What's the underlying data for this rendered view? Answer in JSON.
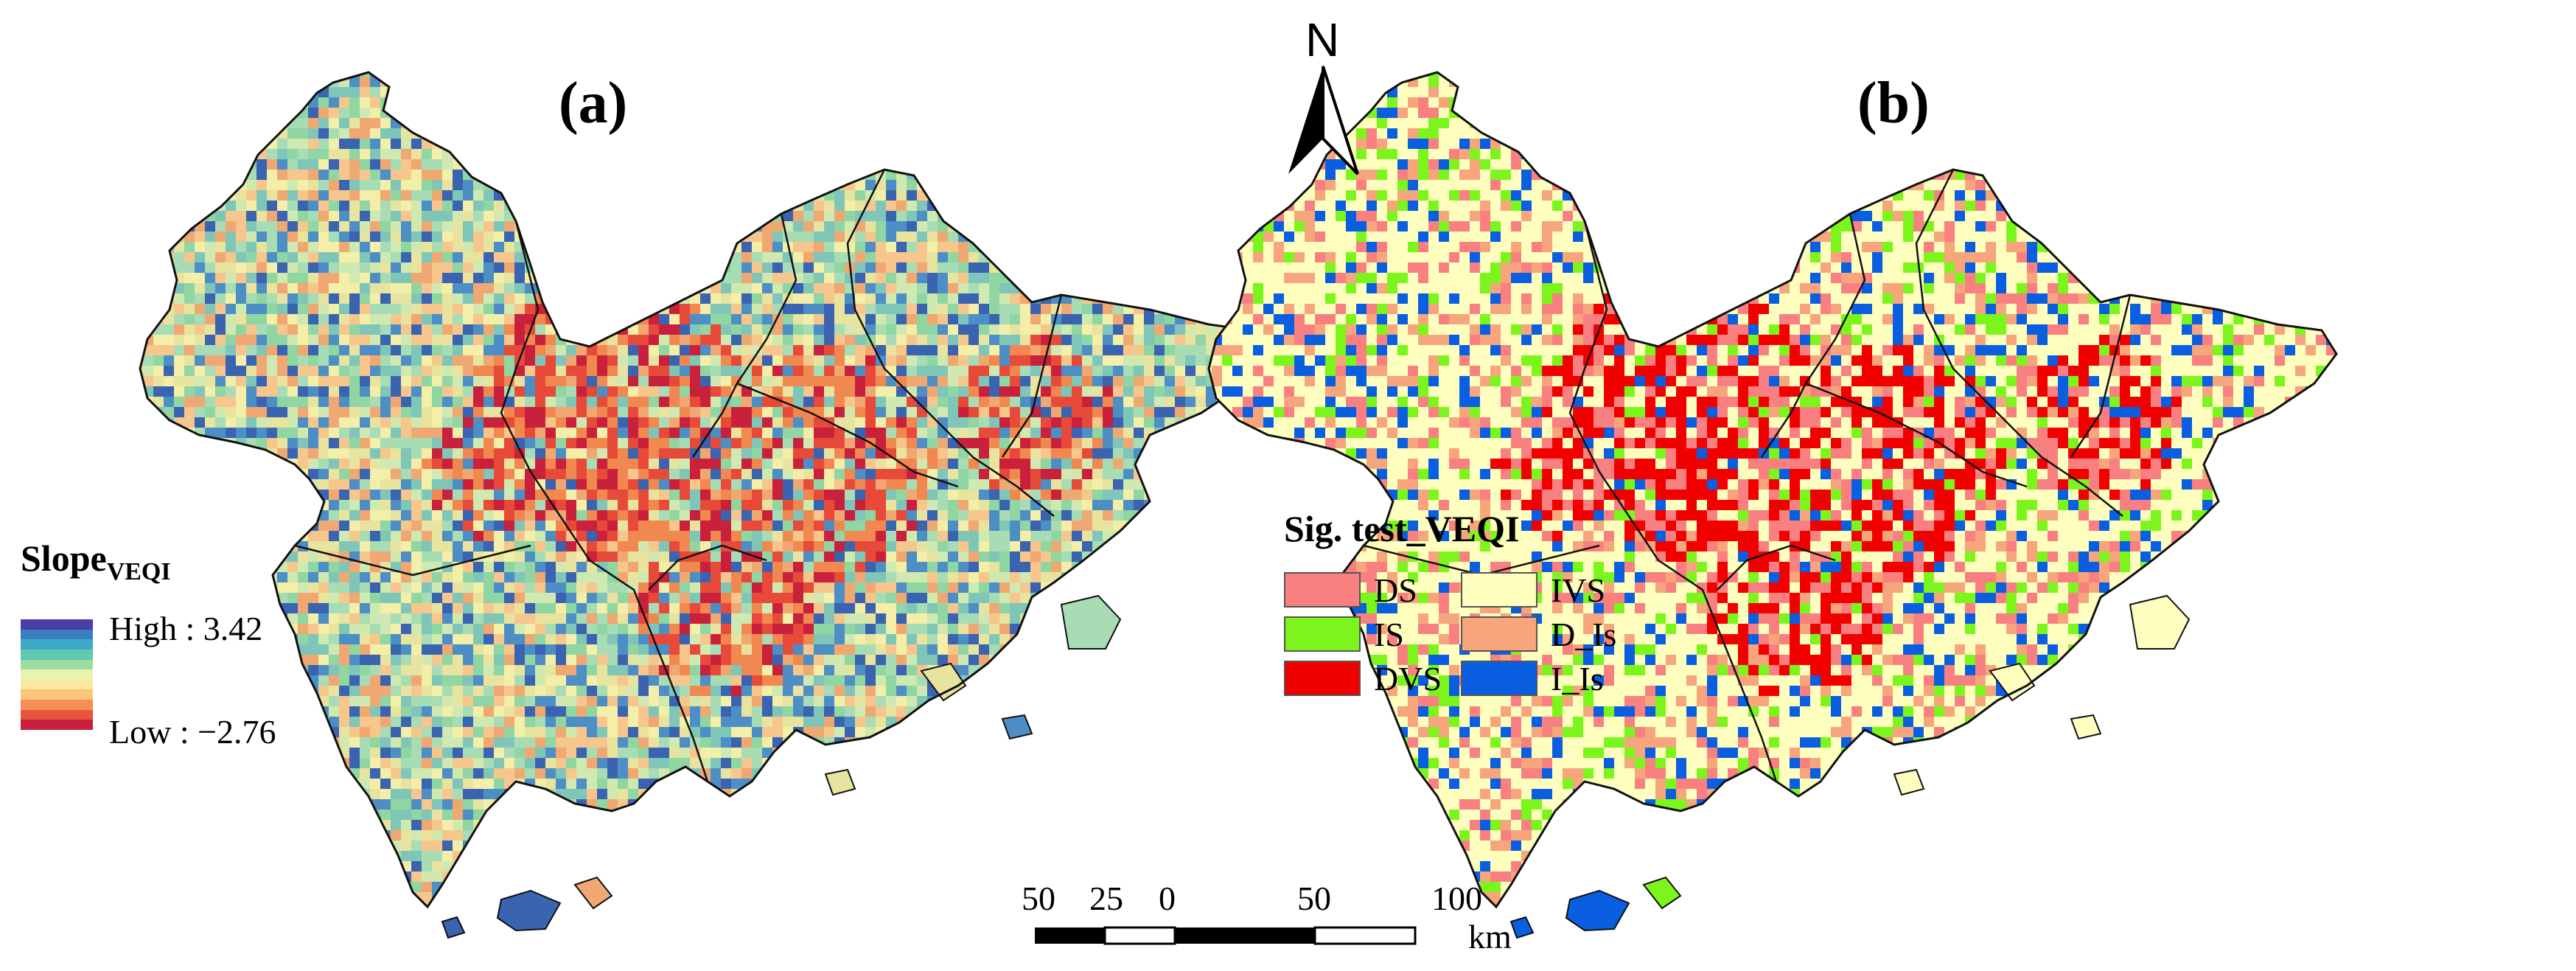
{
  "panels": {
    "a": {
      "label": "(a)"
    },
    "b": {
      "label": "(b)"
    }
  },
  "north_arrow": {
    "letter": "N"
  },
  "legend_slope": {
    "title_main": "Slope",
    "title_sub": "VEQI",
    "high_label": "High : 3.42",
    "low_label": "Low : −2.76",
    "ramp_colors": [
      "#4a3fa5",
      "#3b7fc0",
      "#3fa9c9",
      "#5ec9b0",
      "#9ddca0",
      "#e8f3b0",
      "#fde8a0",
      "#fbc47a",
      "#f58f55",
      "#e8553e",
      "#c91f3c"
    ]
  },
  "legend_sig": {
    "title": "Sig. test_VEQI",
    "items": [
      {
        "label": "DS",
        "color": "#f98080"
      },
      {
        "label": "IS",
        "color": "#7cf51c"
      },
      {
        "label": "DVS",
        "color": "#f20000"
      },
      {
        "label": "IVS",
        "color": "#fefebe"
      },
      {
        "label": "D_Is",
        "color": "#f7a57c"
      },
      {
        "label": "I_Is",
        "color": "#0a5fe0"
      }
    ]
  },
  "scale_bar": {
    "ticks": [
      "50",
      "25",
      "0",
      "50",
      "100"
    ],
    "unit": "km"
  },
  "map_style": {
    "slope_texture": [
      "#7fc6b8",
      "#a8dcb4",
      "#f3eea8",
      "#e9e3a0",
      "#4d8fc4",
      "#3a63b0",
      "#f0a872",
      "#8fd6a3",
      "#cfe9b0",
      "#f6c68c"
    ],
    "slope_hot": [
      "#e84a3a",
      "#f0884f",
      "#c9213b"
    ],
    "sig_texture": [
      "#fefebe",
      "#fefebe",
      "#fefebe",
      "#fefebe",
      "#0a5fe0",
      "#7cf51c",
      "#f98080",
      "#f7a57c"
    ],
    "sig_hot": [
      "#f20000",
      "#f20000",
      "#f98080"
    ],
    "boundary_color": "#111111"
  }
}
